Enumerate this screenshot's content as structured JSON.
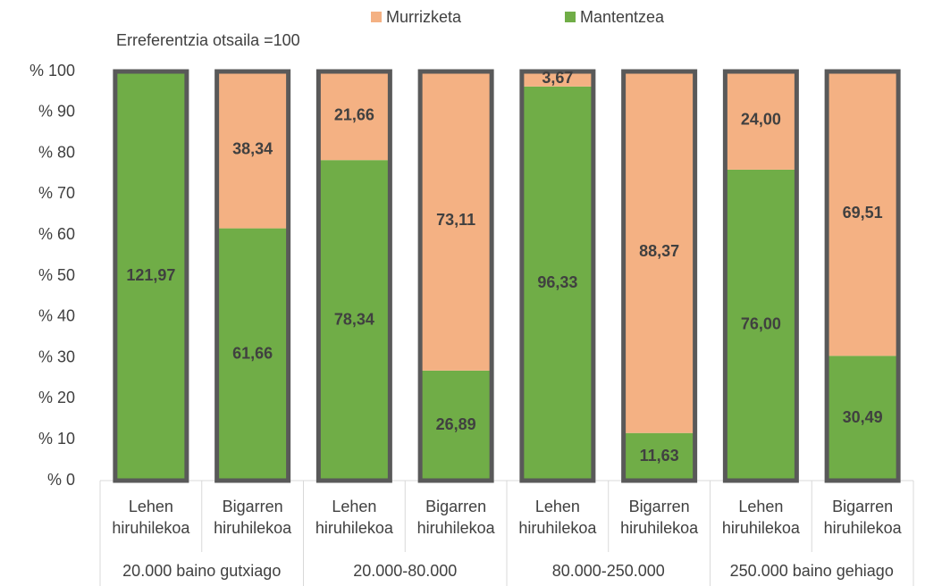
{
  "chart_data": {
    "type": "stacked_percent_bar",
    "annotation": "Erreferentzia otsaila =100",
    "categories": [
      "Lehen hiruhilekoa",
      "Bigarren hiruhilekoa",
      "Lehen hiruhilekoa",
      "Bigarren hiruhilekoa",
      "Lehen hiruhilekoa",
      "Bigarren hiruhilekoa",
      "Lehen hiruhilekoa",
      "Bigarren hiruhilekoa"
    ],
    "groups": [
      "20.000 baino gutxiago",
      "20.000-80.000",
      "80.000-250.000",
      "250.000 baino gehiago"
    ],
    "series": [
      {
        "name": "Mantentzea",
        "color": "#70ad47",
        "values": [
          121.97,
          61.66,
          78.34,
          26.89,
          96.33,
          11.63,
          76.0,
          30.49
        ],
        "value_labels": [
          "121,97",
          "61,66",
          "78,34",
          "26,89",
          "96,33",
          "11,63",
          "76,00",
          "30,49"
        ]
      },
      {
        "name": "Murrizketa",
        "color": "#f4b183",
        "values": [
          null,
          38.34,
          21.66,
          73.11,
          3.67,
          88.37,
          24.0,
          69.51
        ],
        "value_labels": [
          null,
          "38,34",
          "21,66",
          "73,11",
          "3,67",
          "88,37",
          "24,00",
          "69,51"
        ]
      }
    ],
    "ylim": [
      0,
      100
    ],
    "yticks": [
      {
        "value": 0,
        "label": "% 0"
      },
      {
        "value": 10,
        "label": "% 10"
      },
      {
        "value": 20,
        "label": "% 20"
      },
      {
        "value": 30,
        "label": "% 30"
      },
      {
        "value": 40,
        "label": "% 40"
      },
      {
        "value": 50,
        "label": "% 50"
      },
      {
        "value": 60,
        "label": "% 60"
      },
      {
        "value": 70,
        "label": "% 70"
      },
      {
        "value": 80,
        "label": "% 80"
      },
      {
        "value": 90,
        "label": "% 90"
      },
      {
        "value": 100,
        "label": "% 100"
      }
    ]
  }
}
